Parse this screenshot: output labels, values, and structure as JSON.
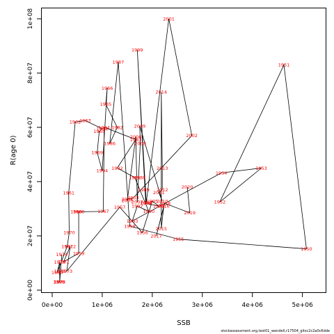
{
  "chart_data": {
    "type": "line",
    "title": "",
    "xlabel": "SSB",
    "ylabel": "R(age 0)",
    "xlim": [
      0,
      5200000
    ],
    "ylim": [
      0,
      100000000
    ],
    "xticks": [
      0,
      1000000,
      2000000,
      3000000,
      4000000,
      5000000
    ],
    "xtick_labels": [
      "0e+00",
      "1e+06",
      "2e+06",
      "3e+06",
      "4e+06",
      "5e+06"
    ],
    "yticks": [
      0,
      20000000,
      40000000,
      60000000,
      80000000,
      100000000
    ],
    "ytick_labels": [
      "0e+00",
      "2e+07",
      "4e+07",
      "6e+07",
      "8e+07",
      "1e+08"
    ],
    "grid": false,
    "line_color": "#000000",
    "label_color": "#ff0000",
    "points": [
      {
        "year": "1950",
        "x": 5080000,
        "y": 15200000
      },
      {
        "year": "1951",
        "x": 4630000,
        "y": 83000000
      },
      {
        "year": "1952",
        "x": 3350000,
        "y": 32500000
      },
      {
        "year": "1953",
        "x": 4180000,
        "y": 45000000
      },
      {
        "year": "1954",
        "x": 3380000,
        "y": 43200000
      },
      {
        "year": "1955",
        "x": 2520000,
        "y": 18800000
      },
      {
        "year": "1956",
        "x": 1800000,
        "y": 21200000
      },
      {
        "year": "1957",
        "x": 1350000,
        "y": 30600000
      },
      {
        "year": "1958",
        "x": 1550000,
        "y": 23600000
      },
      {
        "year": "1959",
        "x": 530000,
        "y": 13600000
      },
      {
        "year": "1960",
        "x": 530000,
        "y": 28900000
      },
      {
        "year": "1961",
        "x": 330000,
        "y": 35800000
      },
      {
        "year": "1962",
        "x": 460000,
        "y": 62000000
      },
      {
        "year": "1963",
        "x": 660000,
        "y": 62500000
      },
      {
        "year": "1964",
        "x": 1000000,
        "y": 59500000
      },
      {
        "year": "1965",
        "x": 940000,
        "y": 58500000
      },
      {
        "year": "1966",
        "x": 1100000,
        "y": 74500000
      },
      {
        "year": "1967",
        "x": 1020000,
        "y": 29000000
      },
      {
        "year": "1968",
        "x": 480000,
        "y": 28900000
      },
      {
        "year": "1969",
        "x": 900000,
        "y": 50700000
      },
      {
        "year": "1970",
        "x": 340000,
        "y": 21200000
      },
      {
        "year": "1971",
        "x": 230000,
        "y": 10500000
      },
      {
        "year": "1972",
        "x": 360000,
        "y": 16100000
      },
      {
        "year": "1973",
        "x": 290000,
        "y": 7000000
      },
      {
        "year": "1974",
        "x": 190000,
        "y": 13100000
      },
      {
        "year": "1975",
        "x": 150000,
        "y": 3000000
      },
      {
        "year": "1976",
        "x": 130000,
        "y": 3000000
      },
      {
        "year": "1977",
        "x": 150000,
        "y": 3000000
      },
      {
        "year": "1978",
        "x": 150000,
        "y": 7000000
      },
      {
        "year": "1979",
        "x": 150000,
        "y": 10300000
      },
      {
        "year": "1980",
        "x": 100000,
        "y": 6500000
      },
      {
        "year": "1981",
        "x": 300000,
        "y": 16100000
      },
      {
        "year": "1982",
        "x": 1300000,
        "y": 60000000
      },
      {
        "year": "1983",
        "x": 1670000,
        "y": 55500000
      },
      {
        "year": "1984",
        "x": 1040000,
        "y": 60000000
      },
      {
        "year": "1985",
        "x": 1070000,
        "y": 68500000
      },
      {
        "year": "1986",
        "x": 1150000,
        "y": 54000000
      },
      {
        "year": "1987",
        "x": 1320000,
        "y": 84000000
      },
      {
        "year": "1988",
        "x": 1750000,
        "y": 41500000
      },
      {
        "year": "1989",
        "x": 1830000,
        "y": 37000000
      },
      {
        "year": "1990",
        "x": 1930000,
        "y": 29000000
      },
      {
        "year": "1991",
        "x": 1650000,
        "y": 41500000
      },
      {
        "year": "1992",
        "x": 1300000,
        "y": 45000000
      },
      {
        "year": "1993",
        "x": 1600000,
        "y": 25500000
      },
      {
        "year": "1994",
        "x": 1000000,
        "y": 44000000
      },
      {
        "year": "1995",
        "x": 2000000,
        "y": 32800000
      },
      {
        "year": "1996",
        "x": 2130000,
        "y": 31000000
      },
      {
        "year": "1997",
        "x": 1700000,
        "y": 31000000
      },
      {
        "year": "1998",
        "x": 1870000,
        "y": 32000000
      },
      {
        "year": "1999",
        "x": 1700000,
        "y": 88500000
      },
      {
        "year": "2000",
        "x": 1880000,
        "y": 32200000
      },
      {
        "year": "2001",
        "x": 2330000,
        "y": 100000000
      },
      {
        "year": "2002",
        "x": 2790000,
        "y": 57000000
      },
      {
        "year": "2003",
        "x": 1620000,
        "y": 34000000
      },
      {
        "year": "2004",
        "x": 1500000,
        "y": 33500000
      },
      {
        "year": "2005",
        "x": 1500000,
        "y": 33000000
      },
      {
        "year": "2006",
        "x": 1670000,
        "y": 56500000
      },
      {
        "year": "2007",
        "x": 1700000,
        "y": 32500000
      },
      {
        "year": "2008",
        "x": 1760000,
        "y": 54000000
      },
      {
        "year": "2009",
        "x": 1750000,
        "y": 60500000
      },
      {
        "year": "2010",
        "x": 2200000,
        "y": 32800000
      },
      {
        "year": "2011",
        "x": 2130000,
        "y": 36000000
      },
      {
        "year": "2012",
        "x": 2200000,
        "y": 37000000
      },
      {
        "year": "2013",
        "x": 2200000,
        "y": 45000000
      },
      {
        "year": "2014",
        "x": 2180000,
        "y": 73000000
      },
      {
        "year": "2015",
        "x": 2180000,
        "y": 22700000
      },
      {
        "year": "2016",
        "x": 2230000,
        "y": 31000000
      },
      {
        "year": "2017",
        "x": 2080000,
        "y": 20000000
      },
      {
        "year": "2018",
        "x": 2250000,
        "y": 32000000
      },
      {
        "year": "2019",
        "x": 2750000,
        "y": 28500000
      },
      {
        "year": "2020",
        "x": 2700000,
        "y": 38000000
      }
    ],
    "path_order": [
      "1974",
      "1975",
      "1976",
      "1977",
      "1978",
      "1979",
      "1980",
      "1981",
      "1970",
      "1961",
      "1962",
      "1963",
      "1964",
      "1965",
      "1969",
      "1994",
      "1966",
      "1985",
      "1982",
      "1986",
      "1987",
      "1958",
      "1955",
      "1950",
      "1951",
      "1952",
      "1953",
      "1954",
      "1993",
      "1997",
      "1990",
      "1991",
      "1992",
      "1983",
      "1984",
      "1967",
      "1968",
      "1960",
      "1959",
      "1971",
      "1972",
      "1973",
      "1957",
      "1956",
      "1995",
      "1996",
      "1998",
      "1999",
      "2000",
      "2001",
      "2002",
      "2003",
      "2004",
      "2005",
      "2006",
      "2007",
      "2008",
      "2009",
      "2010",
      "2011",
      "2012",
      "2013",
      "2014",
      "2015",
      "2016",
      "2017",
      "2018",
      "2019",
      "2020"
    ],
    "footer_text": "stockassessment.org,test01_wendell,r17504_gitsc2c2a0c6dde"
  }
}
